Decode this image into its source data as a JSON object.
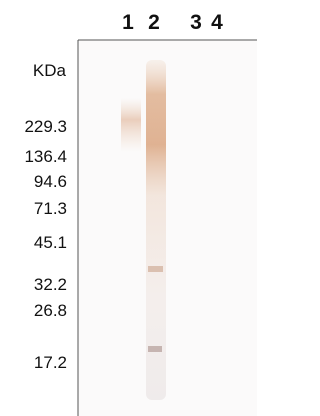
{
  "lanes": [
    "1",
    "2",
    "3",
    "4"
  ],
  "unit_label": "KDa",
  "markers": [
    "229.3",
    "136.4",
    "94.6",
    "71.3",
    "45.1",
    "32.2",
    "26.8",
    "17.2"
  ]
}
